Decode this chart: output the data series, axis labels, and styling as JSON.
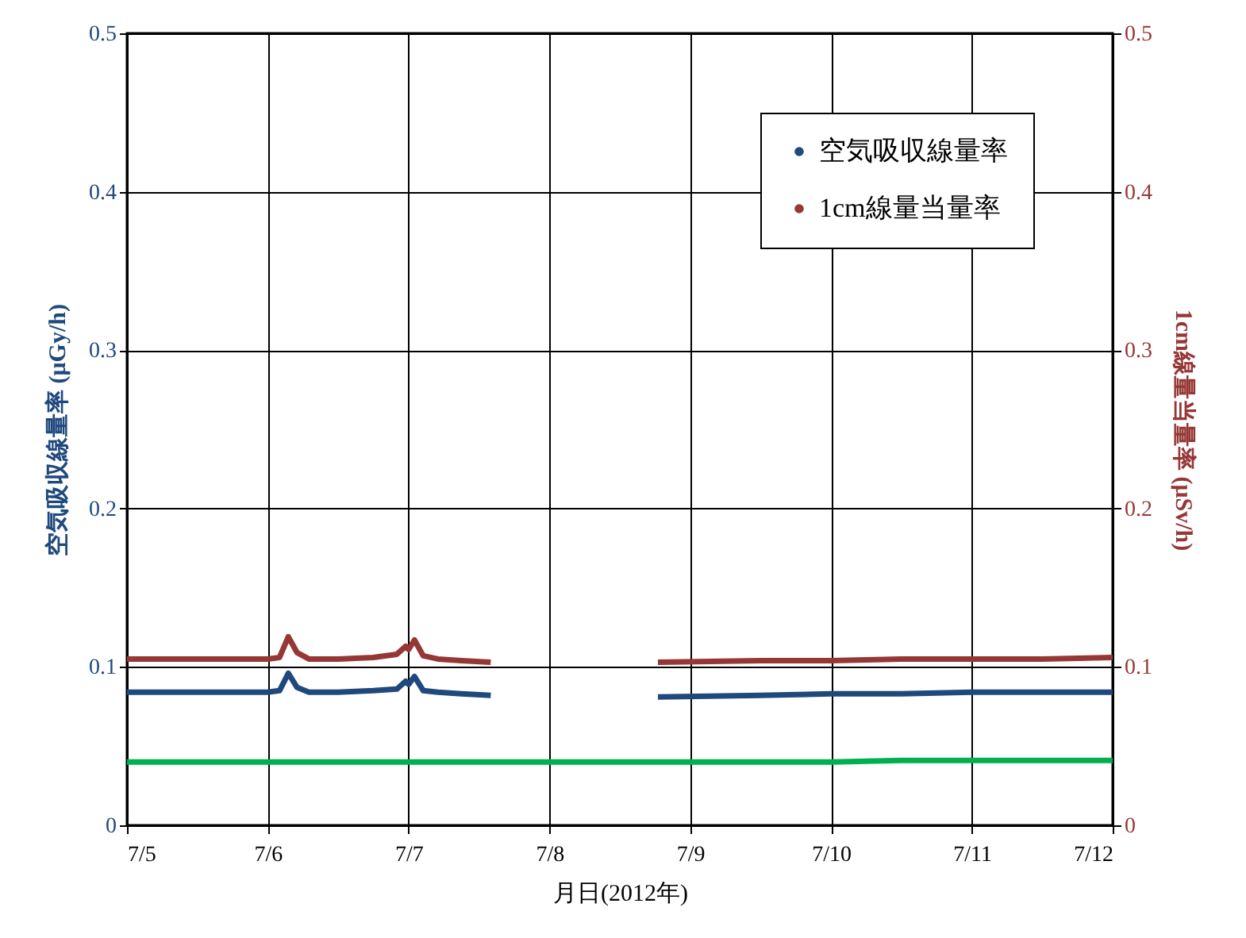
{
  "chart_data": {
    "type": "line",
    "xlabel": "月日(2012年)",
    "ylabel": "空気吸収線量率 (μGy/h)",
    "y2label": "1cm線量当量率 (μSv/h)",
    "x": [
      "2012-07-05T00:00",
      "2012-07-05T12:00",
      "2012-07-06T00:00",
      "2012-07-06T02:00",
      "2012-07-06T03:30",
      "2012-07-06T05:00",
      "2012-07-06T07:00",
      "2012-07-06T12:00",
      "2012-07-06T18:00",
      "2012-07-06T22:00",
      "2012-07-06T23:30",
      "2012-07-07T00:00",
      "2012-07-07T01:00",
      "2012-07-07T02:30",
      "2012-07-07T05:00",
      "2012-07-07T09:00",
      "2012-07-07T14:00",
      "2012-07-08T12:00",
      "2012-07-08T18:30",
      "2012-07-09T12:00",
      "2012-07-10T00:00",
      "2012-07-10T12:00",
      "2012-07-11T00:00",
      "2012-07-11T12:00",
      "2012-07-12T00:00"
    ],
    "series": [
      {
        "name": "空気吸収線量率",
        "color": "#1f497d",
        "values": [
          0.084,
          0.084,
          0.084,
          0.085,
          0.096,
          0.087,
          0.084,
          0.084,
          0.085,
          0.086,
          0.091,
          0.089,
          0.094,
          0.085,
          0.084,
          0.083,
          0.082,
          null,
          0.081,
          0.082,
          0.083,
          0.083,
          0.084,
          0.084,
          0.084
        ]
      },
      {
        "name": "1cm線量当量率",
        "color": "#953735",
        "axis": "y2",
        "values": [
          0.105,
          0.105,
          0.105,
          0.106,
          0.119,
          0.109,
          0.105,
          0.105,
          0.106,
          0.108,
          0.113,
          0.111,
          0.117,
          0.107,
          0.105,
          0.104,
          0.103,
          null,
          0.103,
          0.104,
          0.104,
          0.105,
          0.105,
          0.105,
          0.106
        ]
      },
      {
        "color": "#00b050",
        "values": [
          0.04,
          0.04,
          0.04,
          0.04,
          0.04,
          0.04,
          0.04,
          0.04,
          0.04,
          0.04,
          0.04,
          0.04,
          0.04,
          0.04,
          0.04,
          0.04,
          0.04,
          0.04,
          0.04,
          0.04,
          0.04,
          0.041,
          0.041,
          0.041,
          0.041
        ]
      }
    ],
    "xlim": [
      "2012-07-05T00:00",
      "2012-07-12T00:00"
    ],
    "xticks": [
      {
        "value": "2012-07-05T00:00",
        "label": "7/5"
      },
      {
        "value": "2012-07-06T00:00",
        "label": "7/6"
      },
      {
        "value": "2012-07-07T00:00",
        "label": "7/7"
      },
      {
        "value": "2012-07-08T00:00",
        "label": "7/8"
      },
      {
        "value": "2012-07-09T00:00",
        "label": "7/9"
      },
      {
        "value": "2012-07-10T00:00",
        "label": "7/10"
      },
      {
        "value": "2012-07-11T00:00",
        "label": "7/11"
      },
      {
        "value": "2012-07-12T00:00",
        "label": "7/12"
      }
    ],
    "ylim": [
      0,
      0.5
    ],
    "yticks": [
      0,
      0.1,
      0.2,
      0.3,
      0.4,
      0.5
    ],
    "y2lim": [
      0,
      0.5
    ],
    "y2ticks": [
      0,
      0.1,
      0.2,
      0.3,
      0.4,
      0.5
    ],
    "grid": true,
    "legend": "top right",
    "line_style": "solid"
  }
}
